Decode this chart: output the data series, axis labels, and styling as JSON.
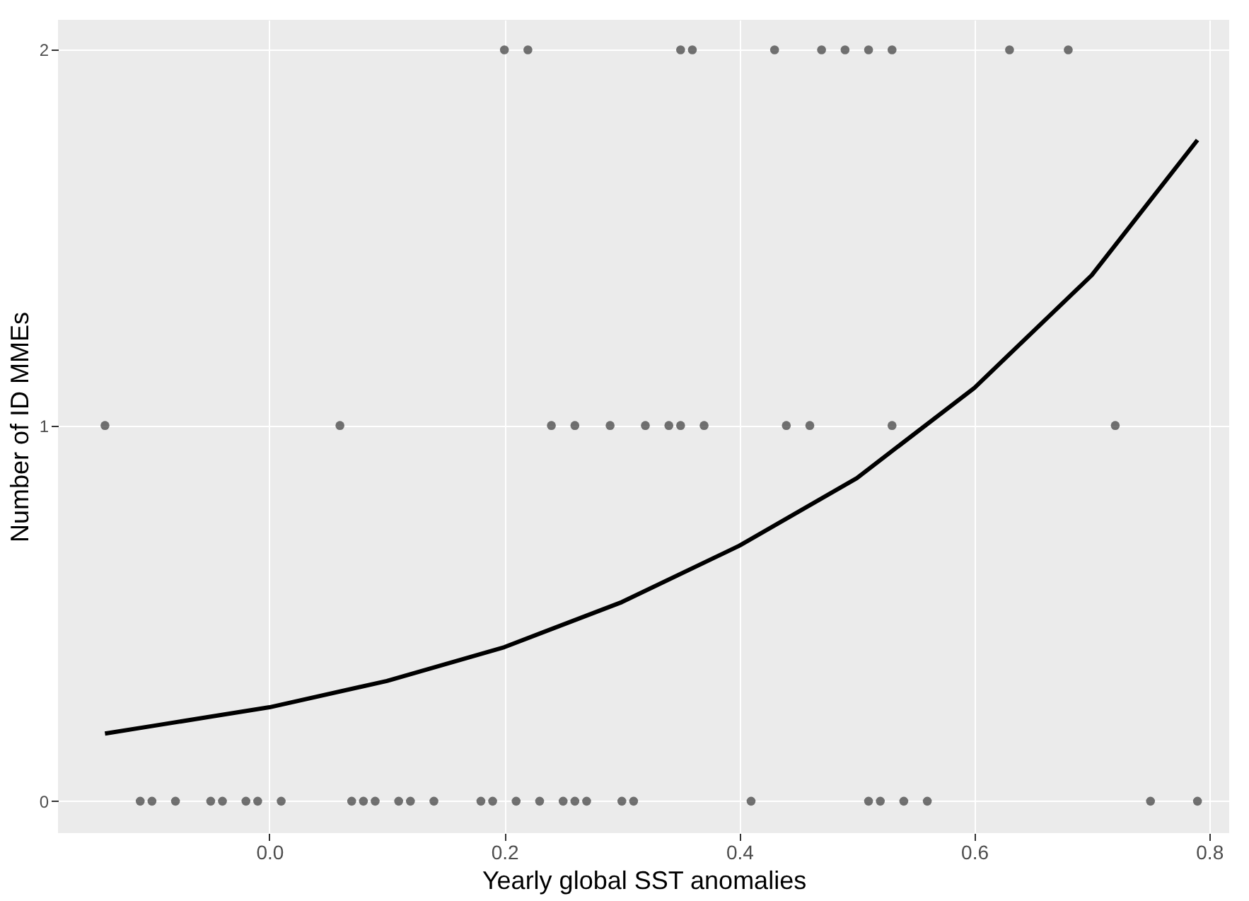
{
  "chart_data": {
    "type": "scatter",
    "xlabel": "Yearly global SST anomalies",
    "ylabel": "Number of ID MMEs",
    "xlim": [
      -0.18,
      0.817
    ],
    "ylim": [
      -0.085,
      2.08
    ],
    "xticks": [
      {
        "value": 0,
        "label": "0.0"
      },
      0.2,
      0.4,
      0.6,
      0.8
    ],
    "yticks": [
      0,
      1,
      2
    ],
    "grid": true,
    "legend": false,
    "series": [
      {
        "color": "#444444",
        "marker": "circle",
        "x": [
          -0.11,
          -0.1,
          -0.08,
          -0.05,
          -0.04,
          -0.02,
          -0.01,
          0.01,
          0.07,
          0.08,
          0.09,
          0.11,
          0.12,
          0.14,
          0.18,
          0.19,
          0.21,
          0.23,
          0.25,
          0.26,
          0.27,
          0.3,
          0.31,
          0.41,
          0.51,
          0.52,
          0.54,
          0.56,
          0.75,
          0.79,
          -0.14,
          0.06,
          0.24,
          0.26,
          0.29,
          0.32,
          0.34,
          0.35,
          0.37,
          0.44,
          0.46,
          0.53,
          0.72,
          0.2,
          0.22,
          0.35,
          0.36,
          0.43,
          0.47,
          0.49,
          0.51,
          0.53,
          0.63,
          0.68
        ],
        "values": [
          0,
          0,
          0,
          0,
          0,
          0,
          0,
          0,
          0,
          0,
          0,
          0,
          0,
          0,
          0,
          0,
          0,
          0,
          0,
          0,
          0,
          0,
          0,
          0,
          0,
          0,
          0,
          0,
          0,
          0,
          1,
          1,
          1,
          1,
          1,
          1,
          1,
          1,
          1,
          1,
          1,
          1,
          1,
          2,
          2,
          2,
          2,
          2,
          2,
          2,
          2,
          2,
          2,
          2
        ]
      },
      {
        "type": "line",
        "marker": "none",
        "line_style": "solid",
        "color": "#000000",
        "x": [
          -0.14,
          -0.1,
          0,
          0.1,
          0.2,
          0.3,
          0.4,
          0.5,
          0.6,
          0.7,
          0.79
        ],
        "values": [
          0.18,
          0.2,
          0.25,
          0.32,
          0.41,
          0.53,
          0.68,
          0.86,
          1.1,
          1.4,
          1.76
        ]
      }
    ]
  }
}
